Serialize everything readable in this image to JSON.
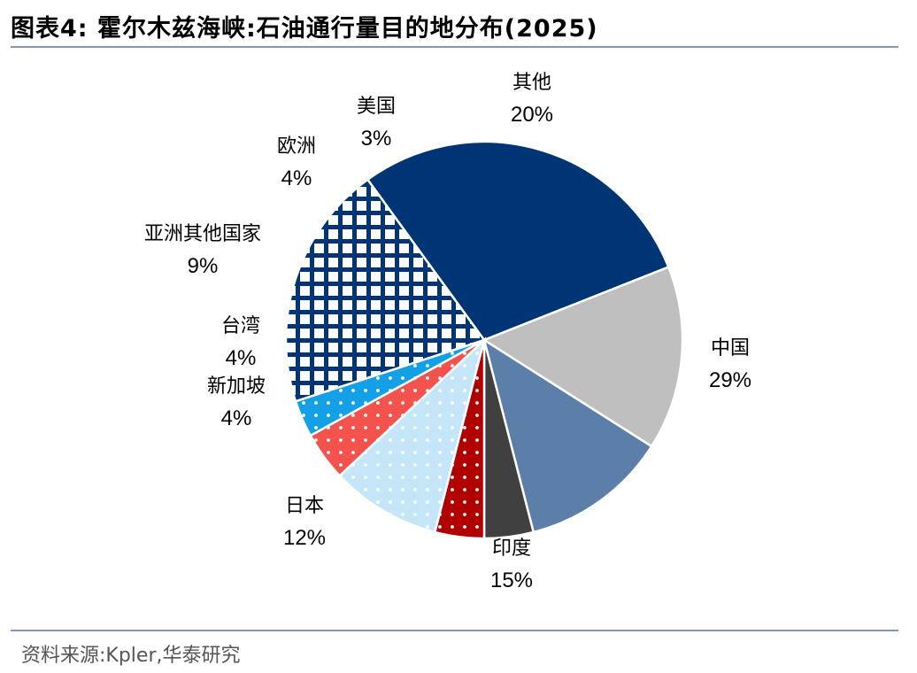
{
  "header": {
    "title": "图表4: 霍尔木兹海峡:石油通行量目的地分布(2025)"
  },
  "footer": {
    "source": "资料来源:Kpler,华泰研究"
  },
  "chart_data": {
    "type": "pie",
    "slices": [
      {
        "name": "中国",
        "value": 29,
        "label": "29%",
        "color": "#003575",
        "pattern": "solid"
      },
      {
        "name": "印度",
        "value": 15,
        "label": "15%",
        "color": "#bfbfbf",
        "pattern": "solid"
      },
      {
        "name": "日本",
        "value": 12,
        "label": "12%",
        "color": "#5b7fa8",
        "pattern": "solid"
      },
      {
        "name": "新加坡",
        "value": 4,
        "label": "4%",
        "color": "#404040",
        "pattern": "solid"
      },
      {
        "name": "台湾",
        "value": 4,
        "label": "4%",
        "color": "#b00000",
        "pattern": "dots-white"
      },
      {
        "name": "亚洲其他国家",
        "value": 9,
        "label": "9%",
        "color": "#c5e6f9",
        "pattern": "dots-white"
      },
      {
        "name": "欧洲",
        "value": 4,
        "label": "4%",
        "color": "#f4524d",
        "pattern": "dots-white"
      },
      {
        "name": "美国",
        "value": 3,
        "label": "3%",
        "color": "#14a0e6",
        "pattern": "dots-white"
      },
      {
        "name": "其他",
        "value": 20,
        "label": "20%",
        "color": "#003575",
        "pattern": "grid"
      }
    ]
  }
}
